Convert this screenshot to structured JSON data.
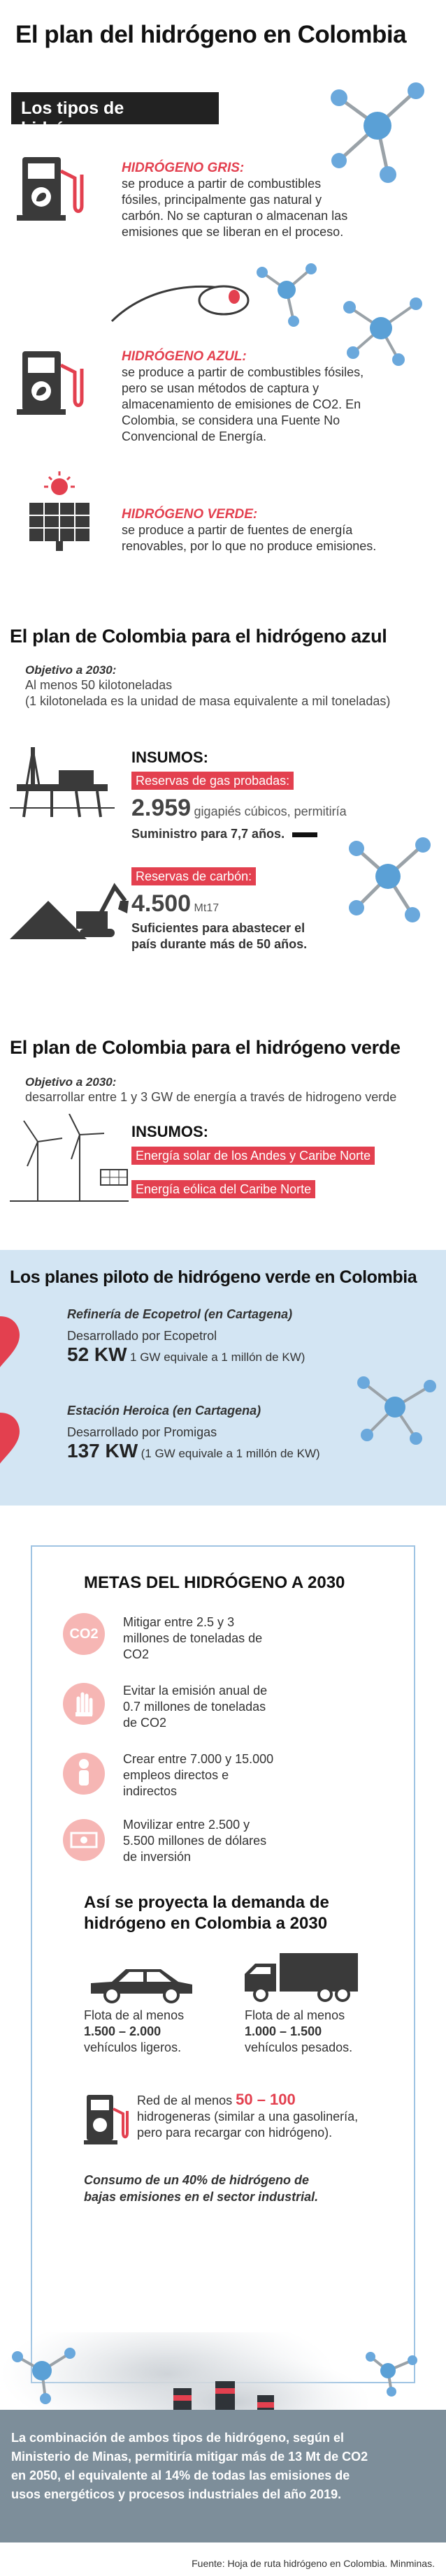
{
  "header": {
    "title": "El plan del hidrógeno en Colombia",
    "types_title": "Los tipos de hidrógeno"
  },
  "types": [
    {
      "name": "HIDRÓGENO GRIS:",
      "lines": [
        "se produce a partir de combustibles",
        "fósiles, principalmente gas natural y",
        "carbón. No se capturan o almacenan las",
        "emisiones que se liberan en el proceso."
      ]
    },
    {
      "name": "HIDRÓGENO AZUL:",
      "lines": [
        "se produce a partir de combustibles fósiles,",
        "pero se usan métodos de captura y",
        "almacenamiento de emisiones de CO2. En",
        "Colombia, se considera una Fuente No",
        "Convencional de Energía."
      ]
    },
    {
      "name": "HIDRÓGENO VERDE:",
      "lines": [
        "se produce a partir de fuentes de energía",
        "renovables, por lo que no produce emisiones."
      ]
    }
  ],
  "blue_plan": {
    "title": "El plan de Colombia para el hidrógeno azul",
    "objective_label": "Objetivo a 2030:",
    "objective_line1": "Al menos 50 kilotoneladas",
    "objective_line2": "(1 kilotonelada es la unidad de masa equivalente a mil toneladas)",
    "insumos": "INSUMOS:",
    "gas_tag": "Reservas de gas probadas:",
    "gas_value": "2.959",
    "gas_unit": "gigapiés cúbicos, permitiría",
    "gas_supply": "Suministro para 7,7 años.",
    "coal_tag": "Reservas de carbón:",
    "coal_value": "4.500",
    "coal_unit": "Mt17",
    "coal_supply1": "Suficientes para abastecer el",
    "coal_supply2": "país durante más de 50 años."
  },
  "green_plan": {
    "title": "El plan de Colombia para el hidrógeno verde",
    "objective_label": "Objetivo a 2030:",
    "objective_line1": "desarrollar entre 1 y 3 GW de energía a través de hidrogeno verde",
    "insumos": "INSUMOS:",
    "solar_tag": "Energía solar de los Andes y Caribe Norte",
    "wind_tag": "Energía eólica del Caribe Norte"
  },
  "pilots": {
    "title": "Los planes piloto de hidrógeno verde en Colombia",
    "p1_name": "Refinería de Ecopetrol (en Cartagena)",
    "p1_dev": "Desarrollado por Ecopetrol",
    "p1_value": "52 KW",
    "p1_note": "1 GW equivale a 1 millón de KW)",
    "p2_name": "Estación Heroica (en Cartagena)",
    "p2_dev": "Desarrollado por Promigas",
    "p2_value": "137 KW",
    "p2_note": "(1 GW equivale a 1 millón de KW)"
  },
  "metas": {
    "title": "METAS DEL HIDRÓGENO A 2030",
    "co2_icon_text": "CO2",
    "items": [
      {
        "lines": [
          "Mitigar entre 2.5 y 3",
          "millones de toneladas de",
          "CO2"
        ]
      },
      {
        "lines": [
          "Evitar la emisión anual de",
          "0.7 millones de toneladas",
          "de CO2"
        ]
      },
      {
        "lines": [
          "Crear entre 7.000 y 15.000",
          "empleos directos e",
          "indirectos"
        ]
      },
      {
        "lines": [
          "Movilizar entre 2.500 y",
          "5.500 millones de dólares",
          "de inversión"
        ]
      }
    ],
    "demand_title1": "Así se proyecta la demanda de",
    "demand_title2": "hidrógeno en Colombia a 2030",
    "light_prefix": "Flota de al menos",
    "light_value": "1.500 – 2.000",
    "light_label": "vehículos ligeros.",
    "heavy_prefix": "Flota de al menos",
    "heavy_value": "1.000 – 1.500",
    "heavy_label": "vehículos pesados.",
    "station_prefix": "Red de al menos",
    "station_value": "50 – 100",
    "station_lines": [
      "hidrogeneras (similar a una gasolinería,",
      "pero para recargar con hidrógeno)."
    ],
    "consumo1": "Consumo de un 40% de hidrógeno de",
    "consumo2": "bajas emisiones en el sector industrial."
  },
  "bottom": {
    "lines": [
      "La combinación de ambos tipos de hidrógeno, según el",
      "Ministerio de Minas, permitiría mitigar más de 13 Mt de CO2",
      "en 2050, el equivalente al 14% de todas las emisiones de",
      "usos energéticos y procesos industriales del año 2019."
    ],
    "source": "Fuente: Hoja de ruta hidrógeno en Colombia. Minminas."
  },
  "colors": {
    "accent": "#e3404f",
    "pilot_bg": "#d3e5f3",
    "molecule_blue": "#4a90c8",
    "molecule_grey": "#888c90"
  }
}
